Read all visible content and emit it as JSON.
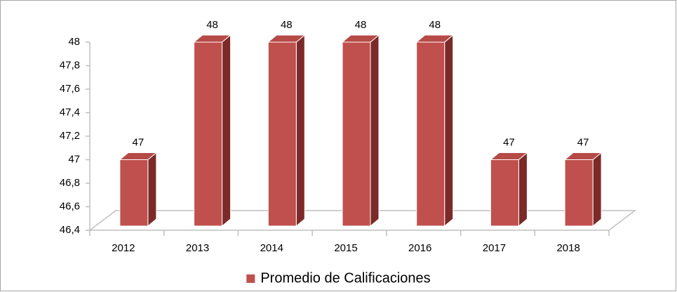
{
  "chart_data": {
    "type": "bar3d",
    "categories": [
      "2012",
      "2013",
      "2014",
      "2015",
      "2016",
      "2017",
      "2018"
    ],
    "series": [
      {
        "name": "Promedio de Calificaciones",
        "color": "#c0504d",
        "values": [
          47,
          48,
          48,
          48,
          48,
          47,
          47
        ]
      }
    ],
    "ylim": [
      46.4,
      48
    ],
    "yticks": [
      {
        "value": 46.4,
        "label": "46,4"
      },
      {
        "value": 46.6,
        "label": "46,6"
      },
      {
        "value": 46.8,
        "label": "46,8"
      },
      47,
      {
        "value": 47.2,
        "label": "47,2"
      },
      {
        "value": 47.4,
        "label": "47,4"
      },
      {
        "value": 47.6,
        "label": "47,6"
      },
      {
        "value": 47.8,
        "label": "47,8"
      },
      48
    ],
    "legend": "bottom"
  }
}
